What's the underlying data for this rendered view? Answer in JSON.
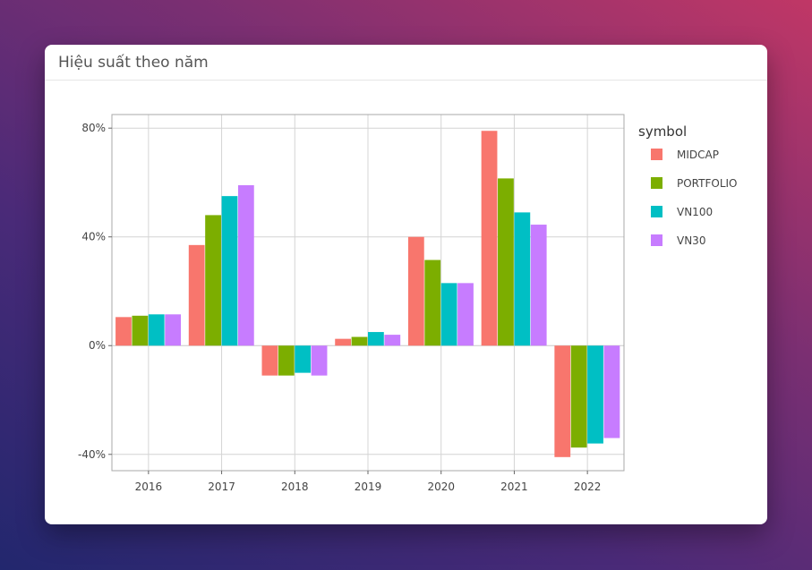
{
  "card": {
    "title": "Hiệu suất theo năm"
  },
  "colors": {
    "MIDCAP": "#f8766d",
    "PORTFOLIO": "#7cae00",
    "VN100": "#00bfc4",
    "VN30": "#c77cff",
    "grid": "#d4d4d4",
    "zero_line": "#c8c8c8",
    "panel_border": "#a8a8a8"
  },
  "chart_data": {
    "type": "bar",
    "categories": [
      "2016",
      "2017",
      "2018",
      "2019",
      "2020",
      "2021",
      "2022"
    ],
    "series": [
      {
        "name": "MIDCAP",
        "values": [
          10.5,
          37,
          -11,
          2.5,
          40,
          79,
          -41
        ]
      },
      {
        "name": "PORTFOLIO",
        "values": [
          11,
          48,
          -11,
          3.2,
          31.5,
          61.5,
          -37.5
        ]
      },
      {
        "name": "VN100",
        "values": [
          11.5,
          55,
          -10,
          5,
          23,
          49,
          -36
        ]
      },
      {
        "name": "VN30",
        "values": [
          11.5,
          59,
          -11,
          4,
          23,
          44.5,
          -34
        ]
      }
    ],
    "y_ticks": [
      -40,
      0,
      40,
      80
    ],
    "y_tick_labels": [
      "-40%",
      "0%",
      "40%",
      "80%"
    ],
    "ylim": [
      -46,
      85
    ],
    "legend": {
      "title": "symbol",
      "placement": "right"
    },
    "grid": true
  }
}
